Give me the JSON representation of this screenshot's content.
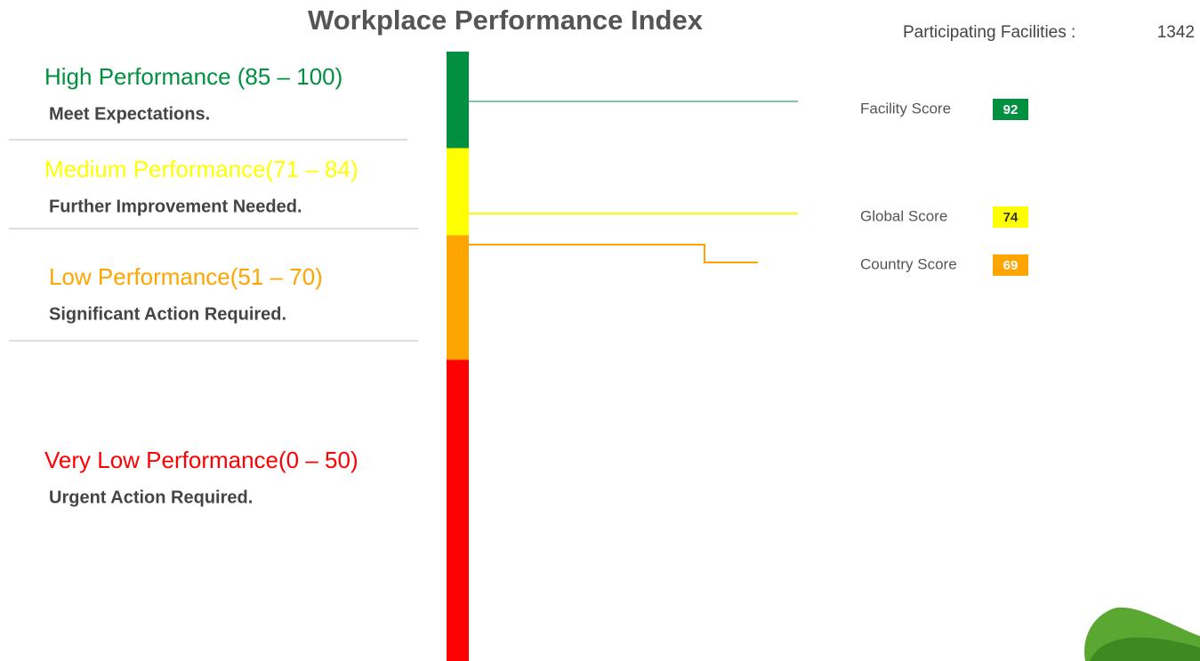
{
  "title": "Workplace Performance Index",
  "participating": {
    "label": "Participating Facilities :",
    "value": 1342
  },
  "bands": [
    {
      "label": "High Performance (85 – 100)",
      "note": "Meet Expectations.",
      "range": [
        85,
        100
      ],
      "color": "#009040"
    },
    {
      "label": "Medium Performance(71 – 84)",
      "note": "Further Improvement Needed.",
      "range": [
        71,
        84
      ],
      "color": "#ffff00"
    },
    {
      "label": "Low Performance(51 – 70)",
      "note": "Significant Action Required.",
      "range": [
        51,
        70
      ],
      "color": "#ffa500"
    },
    {
      "label": "Very Low Performance(0 – 50)",
      "note": "Urgent Action Required.",
      "range": [
        0,
        50
      ],
      "color": "#ff0000"
    }
  ],
  "scores": [
    {
      "name": "Facility Score",
      "value": 92,
      "color": "#009040",
      "text_color": "#ffffff"
    },
    {
      "name": "Global Score",
      "value": 74,
      "color": "#ffff00",
      "text_color": "#333333"
    },
    {
      "name": "Country Score",
      "value": 69,
      "color": "#ffa500",
      "text_color": "#ffffff"
    }
  ]
}
